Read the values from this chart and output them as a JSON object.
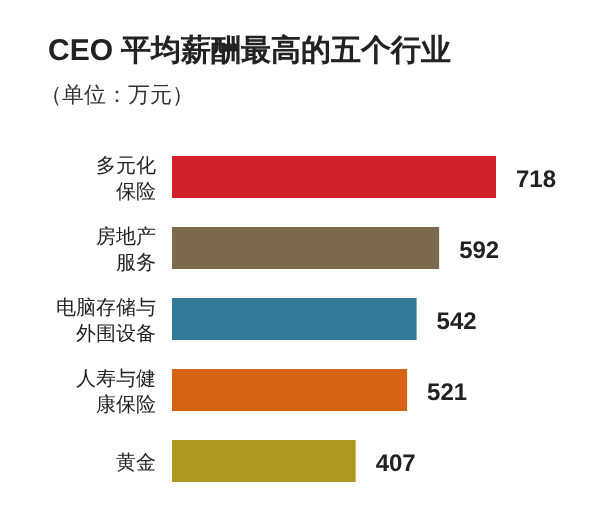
{
  "chart_data": {
    "type": "bar",
    "orientation": "horizontal",
    "title": "CEO 平均薪酬最高的五个行业",
    "subtitle": "（单位：万元）",
    "categories": [
      "多元化保险",
      "房地产服务",
      "电脑存储与外围设备",
      "人寿与健康保险",
      "黄金"
    ],
    "values": [
      718,
      592,
      542,
      521,
      407
    ],
    "colors": [
      "#d3212a",
      "#7b6a4c",
      "#327997",
      "#d66214",
      "#ae971f"
    ],
    "data_labels": true
  }
}
